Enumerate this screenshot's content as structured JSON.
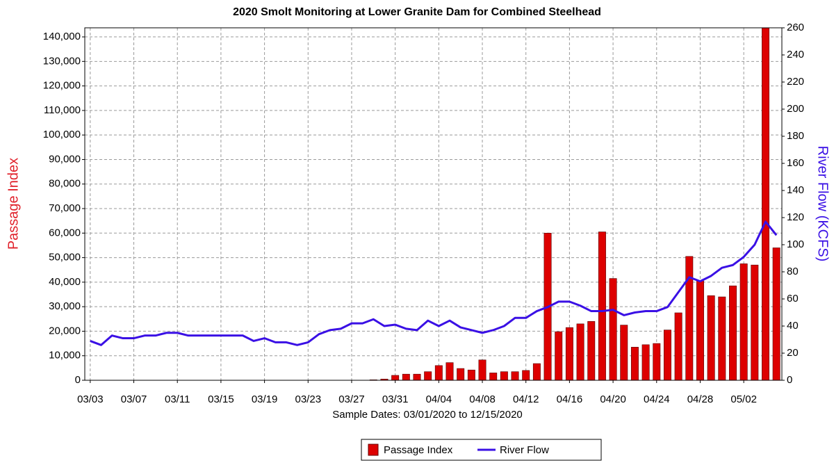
{
  "chart_data": {
    "type": "bar_line",
    "title": "2020 Smolt Monitoring at Lower Granite Dam for Combined Steelhead",
    "x_label": "Sample Dates: 03/01/2020 to 12/15/2020",
    "y_label": "Passage Index",
    "y2_label": "River Flow (KCFS)",
    "categories": [
      "03/03",
      null,
      null,
      null,
      "03/07",
      null,
      null,
      null,
      "03/11",
      null,
      null,
      null,
      "03/15",
      null,
      null,
      null,
      "03/19",
      null,
      null,
      null,
      "03/23",
      null,
      null,
      null,
      "03/27",
      null,
      null,
      null,
      "03/31",
      null,
      null,
      null,
      "04/04",
      null,
      null,
      null,
      "04/08",
      null,
      null,
      null,
      "04/12",
      null,
      null,
      null,
      "04/16",
      null,
      null,
      null,
      "04/20",
      null,
      null,
      null,
      "04/24",
      null,
      null,
      null,
      "04/28",
      null,
      null,
      null,
      "05/02",
      null,
      null,
      null
    ],
    "series": [
      {
        "name": "Passage Index",
        "type": "bar",
        "color": "#dd0000",
        "values": [
          0,
          0,
          0,
          0,
          0,
          0,
          0,
          0,
          0,
          0,
          0,
          0,
          0,
          0,
          0,
          0,
          0,
          0,
          0,
          0,
          0,
          0,
          0,
          0,
          0,
          0,
          200,
          500,
          2000,
          2500,
          2500,
          3500,
          6000,
          7200,
          4800,
          4200,
          8300,
          3000,
          3500,
          3500,
          4000,
          6800,
          60000,
          19800,
          21500,
          23000,
          24000,
          60500,
          41500,
          22500,
          13500,
          14500,
          15000,
          20500,
          27500,
          50500,
          40500,
          34500,
          34000,
          38500,
          47500,
          47000,
          150000,
          54000
        ]
      },
      {
        "name": "River Flow",
        "type": "line",
        "axis": "y2",
        "color": "#3a10e5",
        "values": [
          29,
          26,
          33,
          31,
          31,
          33,
          33,
          35,
          35,
          33,
          33,
          33,
          33,
          33,
          33,
          29,
          31,
          28,
          28,
          26,
          28,
          34,
          37,
          38,
          42,
          42,
          45,
          40,
          41,
          38,
          37,
          44,
          40,
          44,
          39,
          37,
          35,
          37,
          40,
          46,
          46,
          51,
          54,
          58,
          58,
          55,
          51,
          51,
          52,
          48,
          50,
          51,
          51,
          54,
          65,
          76,
          73,
          77,
          83,
          85,
          91,
          100,
          117,
          107
        ]
      }
    ],
    "ylim": [
      0,
      143700
    ],
    "yticks": [
      0,
      {
        "value": 10000,
        "label": "10,000"
      },
      {
        "value": 20000,
        "label": "20,000"
      },
      {
        "value": 30000,
        "label": "30,000"
      },
      {
        "value": 40000,
        "label": "40,000"
      },
      {
        "value": 50000,
        "label": "50,000"
      },
      {
        "value": 60000,
        "label": "60,000"
      },
      {
        "value": 70000,
        "label": "70,000"
      },
      {
        "value": 80000,
        "label": "80,000"
      },
      {
        "value": 90000,
        "label": "90,000"
      },
      {
        "value": 100000,
        "label": "100,000"
      },
      {
        "value": 110000,
        "label": "110,000"
      },
      {
        "value": 120000,
        "label": "120,000"
      },
      {
        "value": 130000,
        "label": "130,000"
      },
      {
        "value": 140000,
        "label": "140,000"
      }
    ],
    "y2lim": [
      0,
      260
    ],
    "y2ticks": [
      0,
      20,
      40,
      60,
      80,
      100,
      120,
      140,
      160,
      180,
      200,
      220,
      240,
      260
    ],
    "grid": true,
    "legend": "bottom"
  }
}
